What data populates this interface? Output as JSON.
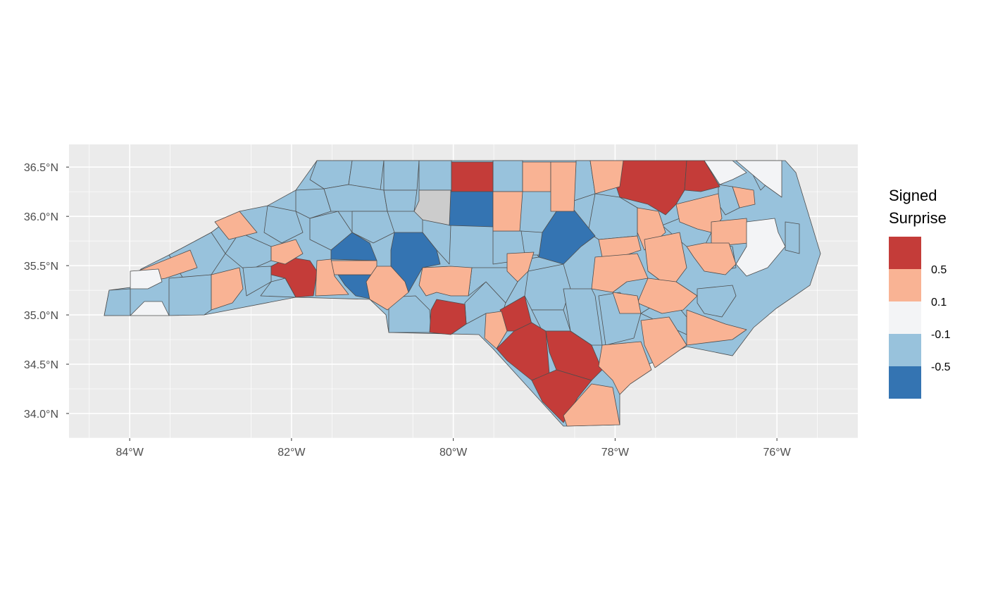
{
  "map": {
    "x_ticks": [
      {
        "lon": -84,
        "label": "84°W"
      },
      {
        "lon": -82,
        "label": "82°W"
      },
      {
        "lon": -80,
        "label": "80°W"
      },
      {
        "lon": -78,
        "label": "78°W"
      },
      {
        "lon": -76,
        "label": "76°W"
      }
    ],
    "y_ticks": [
      {
        "lat": 36.5,
        "label": "36.5°N"
      },
      {
        "lat": 36.0,
        "label": "36.0°N"
      },
      {
        "lat": 35.5,
        "label": "35.5°N"
      },
      {
        "lat": 35.0,
        "label": "35.0°N"
      },
      {
        "lat": 34.5,
        "label": "34.5°N"
      },
      {
        "lat": 34.0,
        "label": "34.0°N"
      }
    ],
    "xlim": [
      -84.75,
      -75.0
    ],
    "ylim": [
      33.75,
      36.73
    ]
  },
  "legend": {
    "title_line1": "Signed",
    "title_line2": "Surprise",
    "breaks": [
      "0.5",
      "0.1",
      "-0.1",
      "-0.5"
    ],
    "colors": {
      "high": "#c43c39",
      "midhigh": "#f9b394",
      "mid": "#f3f4f6",
      "midlow": "#98c2dc",
      "low": "#3474b2",
      "na": "#cccccc"
    }
  }
}
